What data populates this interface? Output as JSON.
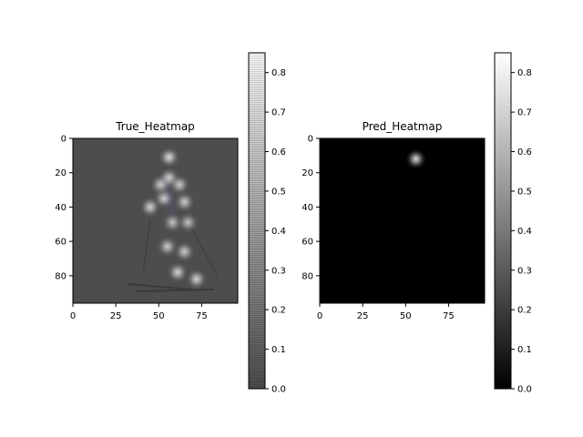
{
  "chart_data": [
    {
      "type": "heatmap",
      "title": "True_Heatmap",
      "xlabel": "",
      "ylabel": "",
      "xlim": [
        0,
        96
      ],
      "ylim": [
        96,
        0
      ],
      "xticks": [
        0,
        25,
        50,
        75
      ],
      "yticks": [
        0,
        20,
        40,
        60,
        80
      ],
      "colormap": "gray",
      "colorbar": {
        "ticks": [
          0.0,
          0.1,
          0.2,
          0.3,
          0.4,
          0.5,
          0.6,
          0.7,
          0.8
        ],
        "range": [
          0.0,
          0.85
        ]
      },
      "background": "#4d4d4d",
      "keypoints": [
        {
          "x": 56,
          "y": 11,
          "v": 0.8
        },
        {
          "x": 56,
          "y": 23,
          "v": 0.75
        },
        {
          "x": 51,
          "y": 27,
          "v": 0.7
        },
        {
          "x": 62,
          "y": 27,
          "v": 0.7
        },
        {
          "x": 53,
          "y": 35,
          "v": 0.7
        },
        {
          "x": 45,
          "y": 40,
          "v": 0.75
        },
        {
          "x": 65,
          "y": 37,
          "v": 0.7
        },
        {
          "x": 58,
          "y": 49,
          "v": 0.65
        },
        {
          "x": 67,
          "y": 49,
          "v": 0.65
        },
        {
          "x": 55,
          "y": 63,
          "v": 0.7
        },
        {
          "x": 65,
          "y": 66,
          "v": 0.7
        },
        {
          "x": 61,
          "y": 78,
          "v": 0.75
        },
        {
          "x": 72,
          "y": 82,
          "v": 0.75
        }
      ]
    },
    {
      "type": "heatmap",
      "title": "Pred_Heatmap",
      "xlabel": "",
      "ylabel": "",
      "xlim": [
        0,
        96
      ],
      "ylim": [
        96,
        0
      ],
      "xticks": [
        0,
        25,
        50,
        75
      ],
      "yticks": [
        0,
        20,
        40,
        60,
        80
      ],
      "colormap": "gray",
      "colorbar": {
        "ticks": [
          0.0,
          0.1,
          0.2,
          0.3,
          0.4,
          0.5,
          0.6,
          0.7,
          0.8
        ],
        "range": [
          0.0,
          0.85
        ]
      },
      "background": "#000000",
      "keypoints": [
        {
          "x": 56,
          "y": 12,
          "v": 0.85
        }
      ]
    }
  ]
}
